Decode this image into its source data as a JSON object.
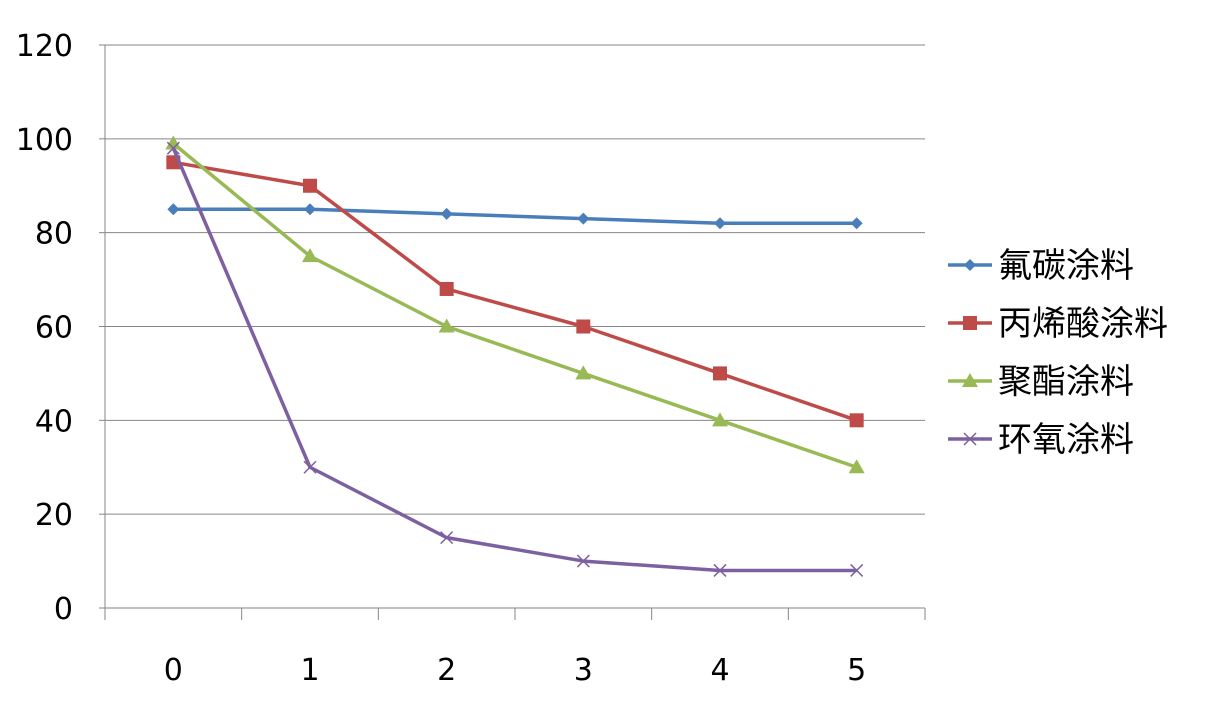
{
  "chart_data": {
    "type": "line",
    "categories": [
      "0",
      "1",
      "2",
      "3",
      "4",
      "5"
    ],
    "ylim": [
      0,
      120
    ],
    "yticks": [
      0,
      20,
      40,
      60,
      80,
      100,
      120
    ],
    "grid": true,
    "legend_position": "right",
    "series": [
      {
        "name": "氟碳涂料",
        "color": "#4a7ebb",
        "marker": "diamond",
        "values": [
          85,
          85,
          84,
          83,
          82,
          82
        ]
      },
      {
        "name": "丙烯酸涂料",
        "color": "#be4b48",
        "marker": "square",
        "values": [
          95,
          90,
          68,
          60,
          50,
          40
        ]
      },
      {
        "name": "聚酯涂料",
        "color": "#98b954",
        "marker": "triangle",
        "values": [
          99,
          75,
          60,
          50,
          40,
          30
        ]
      },
      {
        "name": "环氧涂料",
        "color": "#7d60a0",
        "marker": "x",
        "values": [
          98,
          30,
          15,
          10,
          8,
          8
        ]
      }
    ]
  }
}
